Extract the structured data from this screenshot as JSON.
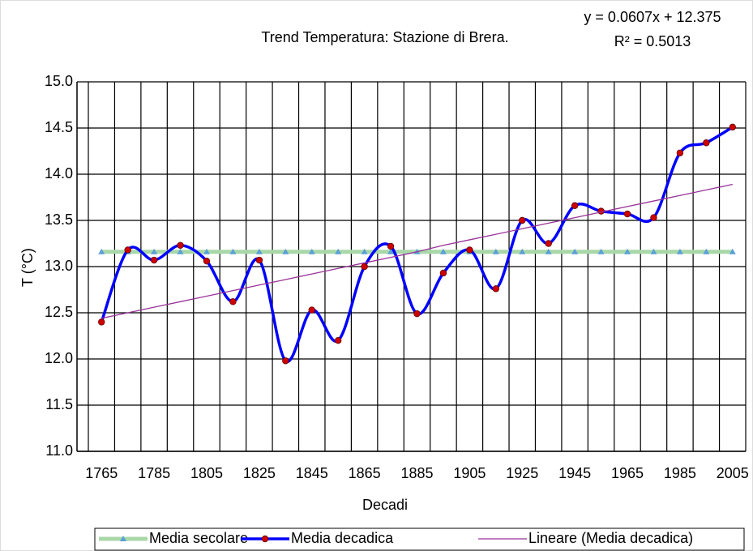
{
  "chart_data": {
    "type": "line",
    "title": "Trend Temperatura: Stazione di Brera.",
    "annotations": [
      "y = 0.0607x + 12.375",
      "R² = 0.5013"
    ],
    "xlabel": "Decadi",
    "ylabel": "T (°C)",
    "categories": [
      "1765",
      null,
      "1785",
      null,
      "1805",
      null,
      "1825",
      null,
      "1845",
      null,
      "1865",
      null,
      "1885",
      null,
      "1905",
      null,
      "1925",
      null,
      "1945",
      null,
      "1965",
      null,
      "1985",
      null,
      "2005"
    ],
    "series": [
      {
        "name": "Media secolare",
        "color": "#a8d8a8",
        "marker_color": "#5aa0d8",
        "values": [
          13.16,
          13.16,
          13.16,
          13.16,
          13.16,
          13.16,
          13.16,
          13.16,
          13.16,
          13.16,
          13.16,
          13.16,
          13.16,
          13.16,
          13.16,
          13.16,
          13.16,
          13.16,
          13.16,
          13.16,
          13.16,
          13.16,
          13.16,
          13.16,
          13.16
        ]
      },
      {
        "name": "Media decadica",
        "color": "#0000ff",
        "marker_color": "#cc0000",
        "values": [
          12.4,
          13.18,
          13.07,
          13.23,
          13.06,
          12.62,
          13.07,
          11.98,
          12.53,
          12.2,
          13.0,
          13.22,
          12.49,
          12.93,
          13.18,
          12.76,
          13.5,
          13.25,
          13.66,
          13.6,
          13.57,
          13.53,
          14.23,
          14.34,
          14.51
        ]
      },
      {
        "name": "Lineare (Media decadica)",
        "color": "#993399",
        "values": [
          12.44,
          12.5,
          12.56,
          12.62,
          12.68,
          12.74,
          12.8,
          12.86,
          12.92,
          12.98,
          13.04,
          13.1,
          13.16,
          13.23,
          13.29,
          13.35,
          13.41,
          13.47,
          13.53,
          13.59,
          13.65,
          13.71,
          13.77,
          13.83,
          13.89
        ]
      }
    ],
    "ylim": [
      11,
      15
    ],
    "yticks": [
      {
        "value": 11,
        "label": "11.0"
      },
      11.5,
      {
        "value": 12,
        "label": "12.0"
      },
      12.5,
      {
        "value": 13,
        "label": "13.0"
      },
      13.5,
      {
        "value": 14,
        "label": "14.0"
      },
      14.5,
      {
        "value": 15,
        "label": "15.0"
      }
    ],
    "grid": true,
    "legend": "bottom"
  }
}
